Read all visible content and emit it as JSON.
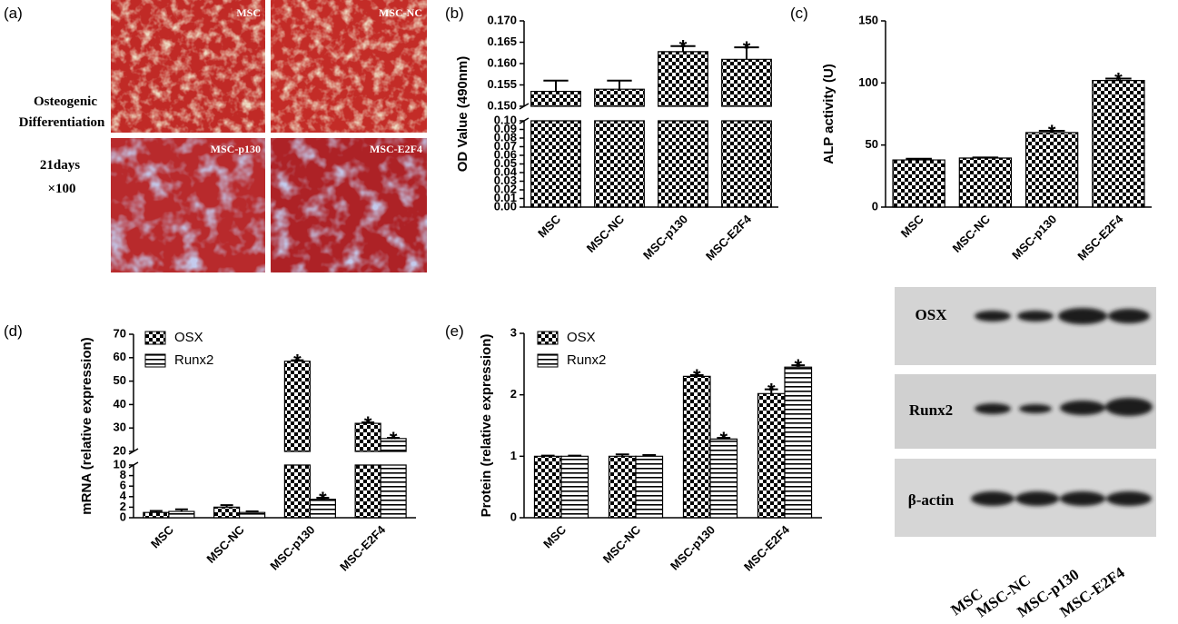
{
  "panel_labels": [
    "(a)",
    "(b)",
    "(c)",
    "(d)",
    "(e)"
  ],
  "staining": {
    "images": [
      "MSC",
      "MSC-NC",
      "MSC-p130",
      "MSC-E2F4"
    ],
    "caption": [
      "Osteogenic",
      "Differentiation",
      "21days",
      "×100"
    ]
  },
  "blot": {
    "rows": [
      "OSX",
      "Runx2",
      "β-actin"
    ],
    "lanes": [
      "MSC",
      "MSC-NC",
      "MSC-p130",
      "MSC-E2F4"
    ]
  },
  "chart_data": [
    {
      "type": "bar",
      "ylabel": "OD Value (490nm)",
      "categories": [
        "MSC",
        "MSC-NC",
        "MSC-p130",
        "MSC-E2F4"
      ],
      "values": [
        0.1535,
        0.154,
        0.1628,
        0.161
      ],
      "errors": [
        0.0025,
        0.002,
        0.0013,
        0.0028
      ],
      "significance": [
        null,
        null,
        "*",
        "*"
      ],
      "pattern": "checker",
      "ylim": [
        0,
        0.17
      ],
      "ybreak": [
        0.1,
        0.15
      ],
      "yticks": [
        {
          "value": 0,
          "label": "0.00"
        },
        0.01,
        0.02,
        0.03,
        0.04,
        0.05,
        0.06,
        0.07,
        0.08,
        0.09,
        {
          "value": 0.1,
          "label": "0.10"
        },
        {
          "value": 0.15,
          "label": "0.150"
        },
        0.155,
        {
          "value": 0.16,
          "label": "0.160"
        },
        0.165,
        {
          "value": 0.17,
          "label": "0.170"
        }
      ]
    },
    {
      "type": "bar",
      "ylabel": "ALP activity (U)",
      "categories": [
        "MSC",
        "MSC-NC",
        "MSC-p130",
        "MSC-E2F4"
      ],
      "values": [
        38,
        39.5,
        60,
        102
      ],
      "errors": [
        1,
        0.5,
        1.5,
        1.5
      ],
      "significance": [
        null,
        null,
        "*",
        "*"
      ],
      "pattern": "checker",
      "ylim": [
        0,
        150
      ],
      "yticks": [
        0,
        50,
        100,
        150
      ]
    },
    {
      "type": "bar",
      "ylabel": "mRNA (relative expression)",
      "categories": [
        "MSC",
        "MSC-NC",
        "MSC-p130",
        "MSC-E2F4"
      ],
      "series": [
        {
          "name": "OSX",
          "pattern": "checker",
          "values": [
            1,
            2,
            58.5,
            32
          ],
          "errors": [
            0.3,
            0.4,
            0.4,
            0.4
          ],
          "significance": [
            null,
            null,
            "*",
            "*"
          ]
        },
        {
          "name": "Runx2",
          "pattern": "stripes",
          "values": [
            1.2,
            1,
            3.5,
            25.5
          ],
          "errors": [
            0.4,
            0.2,
            0.3,
            0.3
          ],
          "significance": [
            null,
            null,
            "*",
            "*"
          ]
        }
      ],
      "legend": "upper left",
      "ylim": [
        0,
        70
      ],
      "ybreak": [
        10,
        20
      ],
      "yticks": [
        0,
        2,
        4,
        6,
        8,
        10,
        20,
        30,
        40,
        50,
        60,
        70
      ]
    },
    {
      "type": "bar",
      "ylabel": "Protein (relative expression)",
      "categories": [
        "MSC",
        "MSC-NC",
        "MSC-p130",
        "MSC-E2F4"
      ],
      "series": [
        {
          "name": "OSX",
          "pattern": "checker",
          "values": [
            1,
            1,
            2.3,
            2.02
          ],
          "errors": [
            0.01,
            0.03,
            0.02,
            0.07
          ],
          "significance": [
            null,
            null,
            "*",
            "*"
          ]
        },
        {
          "name": "Runx2",
          "pattern": "stripes",
          "values": [
            1,
            1,
            1.28,
            2.45
          ],
          "errors": [
            0.01,
            0.02,
            0.02,
            0.03
          ],
          "significance": [
            null,
            null,
            "*",
            "*"
          ]
        }
      ],
      "legend": "upper left",
      "ylim": [
        0,
        3
      ],
      "yticks": [
        0,
        1,
        2,
        3
      ]
    }
  ]
}
